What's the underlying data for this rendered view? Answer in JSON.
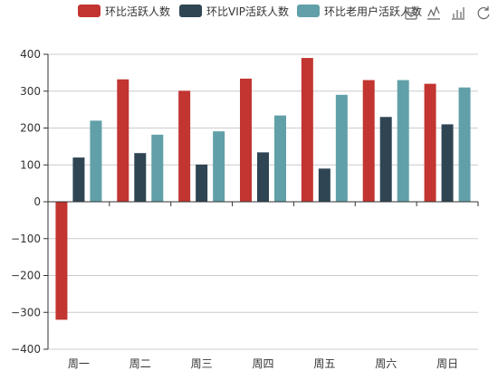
{
  "colors": {
    "series": [
      "#c23531",
      "#2f4554",
      "#61a0a8"
    ],
    "axis": "#333333",
    "grid": "#cccccc"
  },
  "toolbox": {
    "icons": [
      "save-image-icon",
      "line-chart-icon",
      "bar-chart-icon",
      "restore-icon"
    ]
  },
  "chart_data": {
    "type": "bar",
    "categories": [
      "周一",
      "周二",
      "周三",
      "周四",
      "周五",
      "周六",
      "周日"
    ],
    "series": [
      {
        "name": "环比活跃人数",
        "values": [
          -320,
          332,
          301,
          334,
          390,
          330,
          320
        ]
      },
      {
        "name": "环比VIP活跃人数",
        "values": [
          120,
          132,
          101,
          134,
          90,
          230,
          210
        ]
      },
      {
        "name": "环比老用户活跃人数",
        "values": [
          220,
          182,
          191,
          234,
          290,
          330,
          310
        ]
      }
    ],
    "y_ticks": [
      400,
      300,
      200,
      100,
      0,
      -100,
      -200,
      -300,
      -400
    ],
    "ylim": [
      -400,
      400
    ],
    "grid": true,
    "legend_position": "top-center"
  }
}
